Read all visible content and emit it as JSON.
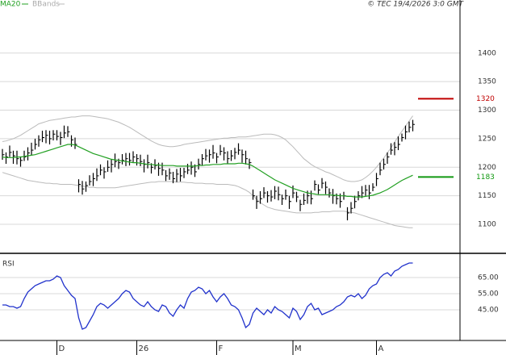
{
  "caption": "© TEC 19/4/2026 3:0 GMT",
  "chart_data": [
    {
      "type": "ohlc",
      "categories": [
        null,
        null,
        null,
        null,
        null,
        null,
        null,
        null,
        null,
        null,
        null,
        null,
        null,
        null,
        null,
        "D",
        null,
        null,
        null,
        null,
        null,
        null,
        null,
        null,
        null,
        null,
        null,
        null,
        null,
        null,
        null,
        null,
        null,
        null,
        null,
        null,
        null,
        "26",
        null,
        null,
        null,
        null,
        null,
        null,
        null,
        null,
        null,
        null,
        null,
        null,
        null,
        null,
        null,
        null,
        null,
        null,
        null,
        null,
        null,
        "F",
        null,
        null,
        null,
        null,
        null,
        null,
        null,
        null,
        null,
        null,
        null,
        null,
        null,
        null,
        null,
        null,
        null,
        null,
        null,
        null,
        "M",
        null,
        null,
        null,
        null,
        null,
        null,
        null,
        null,
        null,
        null,
        null,
        null,
        null,
        null,
        null,
        null,
        null,
        null,
        null,
        null,
        null,
        null,
        "A",
        null,
        null,
        null,
        null,
        null,
        null,
        null,
        null,
        null,
        null
      ],
      "high": [
        1232,
        1226,
        1238,
        1229,
        1229,
        1219,
        1229,
        1235,
        1243,
        1250,
        1256,
        1264,
        1265,
        1264,
        1265,
        1265,
        1262,
        1273,
        1272,
        1256,
        1252,
        1179,
        1176,
        1175,
        1186,
        1190,
        1198,
        1205,
        1200,
        1212,
        1214,
        1224,
        1215,
        1223,
        1225,
        1225,
        1228,
        1223,
        1222,
        1214,
        1222,
        1207,
        1214,
        1208,
        1208,
        1195,
        1198,
        1192,
        1197,
        1199,
        1199,
        1206,
        1210,
        1205,
        1215,
        1223,
        1232,
        1231,
        1239,
        1225,
        1239,
        1235,
        1228,
        1230,
        1234,
        1242,
        1231,
        1229,
        1215,
        1161,
        1150,
        1158,
        1165,
        1158,
        1160,
        1167,
        1166,
        1152,
        1161,
        1150,
        1168,
        1157,
        1143,
        1154,
        1159,
        1159,
        1177,
        1170,
        1181,
        1175,
        1163,
        1162,
        1154,
        1154,
        1157,
        1130,
        1139,
        1150,
        1158,
        1167,
        1169,
        1169,
        1172,
        1190,
        1208,
        1215,
        1226,
        1242,
        1244,
        1254,
        1259,
        1273,
        1280,
        1283
      ],
      "low": [
        1213,
        1206,
        1218,
        1206,
        1205,
        1201,
        1211,
        1212,
        1221,
        1231,
        1236,
        1244,
        1242,
        1240,
        1247,
        1247,
        1239,
        1251,
        1253,
        1236,
        1232,
        1156,
        1152,
        1157,
        1168,
        1167,
        1176,
        1186,
        1180,
        1192,
        1191,
        1200,
        1197,
        1205,
        1202,
        1203,
        1209,
        1203,
        1202,
        1191,
        1198,
        1189,
        1196,
        1185,
        1186,
        1176,
        1178,
        1172,
        1174,
        1175,
        1181,
        1188,
        1187,
        1183,
        1196,
        1203,
        1212,
        1208,
        1215,
        1207,
        1221,
        1212,
        1206,
        1211,
        1214,
        1222,
        1208,
        1205,
        1197,
        1143,
        1127,
        1136,
        1146,
        1138,
        1140,
        1144,
        1142,
        1134,
        1143,
        1127,
        1146,
        1139,
        1123,
        1134,
        1136,
        1135,
        1159,
        1153,
        1163,
        1153,
        1147,
        1136,
        1135,
        1129,
        1143,
        1107,
        1119,
        1128,
        1142,
        1146,
        1150,
        1144,
        1158,
        1167,
        1186,
        1196,
        1206,
        1222,
        1221,
        1230,
        1245,
        1249,
        1261,
        1263
      ],
      "close": [
        1222,
        1218,
        1226,
        1220,
        1215,
        1212,
        1218,
        1225,
        1230,
        1240,
        1248,
        1252,
        1256,
        1250,
        1258,
        1254,
        1252,
        1260,
        1262,
        1248,
        1240,
        1170,
        1162,
        1168,
        1175,
        1180,
        1185,
        1195,
        1192,
        1200,
        1205,
        1210,
        1208,
        1212,
        1215,
        1212,
        1218,
        1215,
        1210,
        1205,
        1208,
        1200,
        1203,
        1198,
        1195,
        1185,
        1190,
        1180,
        1188,
        1185,
        1192,
        1195,
        1200,
        1192,
        1205,
        1215,
        1220,
        1222,
        1225,
        1218,
        1228,
        1225,
        1215,
        1220,
        1226,
        1230,
        1222,
        1215,
        1208,
        1150,
        1140,
        1145,
        1155,
        1150,
        1148,
        1158,
        1152,
        1145,
        1150,
        1140,
        1155,
        1148,
        1135,
        1142,
        1150,
        1145,
        1170,
        1160,
        1172,
        1165,
        1155,
        1150,
        1145,
        1140,
        1150,
        1120,
        1128,
        1140,
        1150,
        1155,
        1160,
        1155,
        1165,
        1180,
        1195,
        1205,
        1218,
        1230,
        1235,
        1240,
        1252,
        1262,
        1270,
        1275
      ],
      "color": "#000000",
      "series": [
        {
          "name": "MA20",
          "color": "#22a022",
          "values": [
            1218,
            1217,
            1217,
            1217,
            1218,
            1218,
            1219,
            1220,
            1221,
            1222,
            1224,
            1226,
            1228,
            1230,
            1232,
            1234,
            1236,
            1238,
            1240,
            1240,
            1239,
            1236,
            1233,
            1230,
            1227,
            1224,
            1222,
            1220,
            1218,
            1216,
            1214,
            1213,
            1212,
            1211,
            1210,
            1209,
            1208,
            1208,
            1207,
            1206,
            1205,
            1205,
            1204,
            1204,
            1203,
            1203,
            1203,
            1203,
            1202,
            1202,
            1202,
            1202,
            1202,
            1202,
            1203,
            1203,
            1204,
            1204,
            1205,
            1205,
            1205,
            1206,
            1206,
            1206,
            1206,
            1207,
            1207,
            1206,
            1205,
            1202,
            1198,
            1194,
            1190,
            1186,
            1182,
            1178,
            1175,
            1172,
            1169,
            1166,
            1163,
            1161,
            1159,
            1157,
            1155,
            1154,
            1153,
            1152,
            1152,
            1152,
            1152,
            1151,
            1151,
            1150,
            1150,
            1149,
            1149,
            1148,
            1148,
            1148,
            1149,
            1150,
            1151,
            1153,
            1155,
            1158,
            1161,
            1165,
            1169,
            1173,
            1177,
            1180,
            1183,
            1186
          ]
        },
        {
          "name": "BBands",
          "color": "#bbbbbb",
          "upper": [
            1245,
            1246,
            1248,
            1250,
            1253,
            1256,
            1260,
            1264,
            1268,
            1272,
            1276,
            1278,
            1280,
            1282,
            1283,
            1284,
            1285,
            1286,
            1287,
            1288,
            1288,
            1289,
            1290,
            1290,
            1290,
            1289,
            1288,
            1287,
            1286,
            1285,
            1283,
            1281,
            1279,
            1276,
            1273,
            1270,
            1266,
            1262,
            1258,
            1254,
            1250,
            1246,
            1243,
            1240,
            1238,
            1237,
            1236,
            1236,
            1237,
            1238,
            1240,
            1241,
            1242,
            1243,
            1244,
            1245,
            1246,
            1247,
            1248,
            1249,
            1250,
            1251,
            1251,
            1252,
            1252,
            1253,
            1253,
            1253,
            1254,
            1255,
            1256,
            1257,
            1258,
            1258,
            1258,
            1257,
            1255,
            1252,
            1248,
            1242,
            1236,
            1229,
            1222,
            1215,
            1210,
            1205,
            1201,
            1198,
            1195,
            1192,
            1190,
            1187,
            1184,
            1181,
            1178,
            1176,
            1175,
            1175,
            1176,
            1178,
            1182,
            1187,
            1193,
            1200,
            1208,
            1216,
            1225,
            1234,
            1244,
            1254,
            1263,
            1272,
            1281,
            1290
          ],
          "lower": [
            1191,
            1189,
            1187,
            1185,
            1183,
            1181,
            1179,
            1177,
            1176,
            1175,
            1174,
            1173,
            1172,
            1172,
            1171,
            1171,
            1170,
            1170,
            1170,
            1170,
            1169,
            1168,
            1167,
            1166,
            1165,
            1165,
            1164,
            1164,
            1164,
            1164,
            1164,
            1164,
            1165,
            1166,
            1167,
            1168,
            1169,
            1170,
            1171,
            1172,
            1173,
            1174,
            1174,
            1175,
            1175,
            1175,
            1175,
            1175,
            1174,
            1174,
            1174,
            1173,
            1173,
            1172,
            1172,
            1172,
            1171,
            1171,
            1171,
            1170,
            1170,
            1170,
            1170,
            1169,
            1168,
            1166,
            1163,
            1160,
            1156,
            1150,
            1144,
            1138,
            1134,
            1130,
            1128,
            1126,
            1125,
            1124,
            1123,
            1122,
            1121,
            1120,
            1120,
            1120,
            1120,
            1120,
            1121,
            1121,
            1122,
            1122,
            1122,
            1123,
            1123,
            1123,
            1123,
            1122,
            1121,
            1120,
            1118,
            1116,
            1114,
            1112,
            1110,
            1108,
            1106,
            1104,
            1102,
            1100,
            1098,
            1097,
            1096,
            1095,
            1094,
            1094
          ]
        }
      ],
      "levels": [
        {
          "value": 1320,
          "color": "#c00000"
        },
        {
          "value": 1183,
          "color": "#119911"
        }
      ],
      "ylim": [
        1052,
        1493
      ],
      "yticks": [
        1100,
        1150,
        1200,
        1250,
        1300,
        1350,
        1400
      ],
      "grid": true
    },
    {
      "type": "line",
      "title": "RSI",
      "color": "#2233cc",
      "values": [
        48,
        48,
        47,
        47,
        46,
        47,
        52,
        56,
        58,
        60,
        61,
        62,
        63,
        63,
        64,
        66,
        65,
        60,
        57,
        54,
        52,
        40,
        33,
        34,
        38,
        42,
        47,
        49,
        48,
        46,
        48,
        50,
        52,
        55,
        57,
        56,
        52,
        50,
        48,
        47,
        50,
        47,
        45,
        44,
        48,
        47,
        43,
        41,
        45,
        48,
        46,
        52,
        56,
        57,
        59,
        58,
        55,
        57,
        53,
        50,
        53,
        55,
        52,
        48,
        47,
        45,
        40,
        34,
        36,
        43,
        46,
        44,
        42,
        45,
        43,
        47,
        45,
        44,
        42,
        40,
        46,
        44,
        39,
        42,
        47,
        49,
        45,
        46,
        42,
        43,
        44,
        45,
        47,
        48,
        50,
        53,
        54,
        53,
        55,
        52,
        54,
        58,
        60,
        61,
        65,
        67,
        68,
        66,
        69,
        70,
        72,
        73,
        74,
        74
      ],
      "ylim": [
        27,
        79
      ],
      "yticks": [
        {
          "value": 45,
          "label": "45.00"
        },
        {
          "value": 55,
          "label": "55.00"
        },
        {
          "value": 65,
          "label": "65.00"
        }
      ],
      "grid": true
    }
  ]
}
